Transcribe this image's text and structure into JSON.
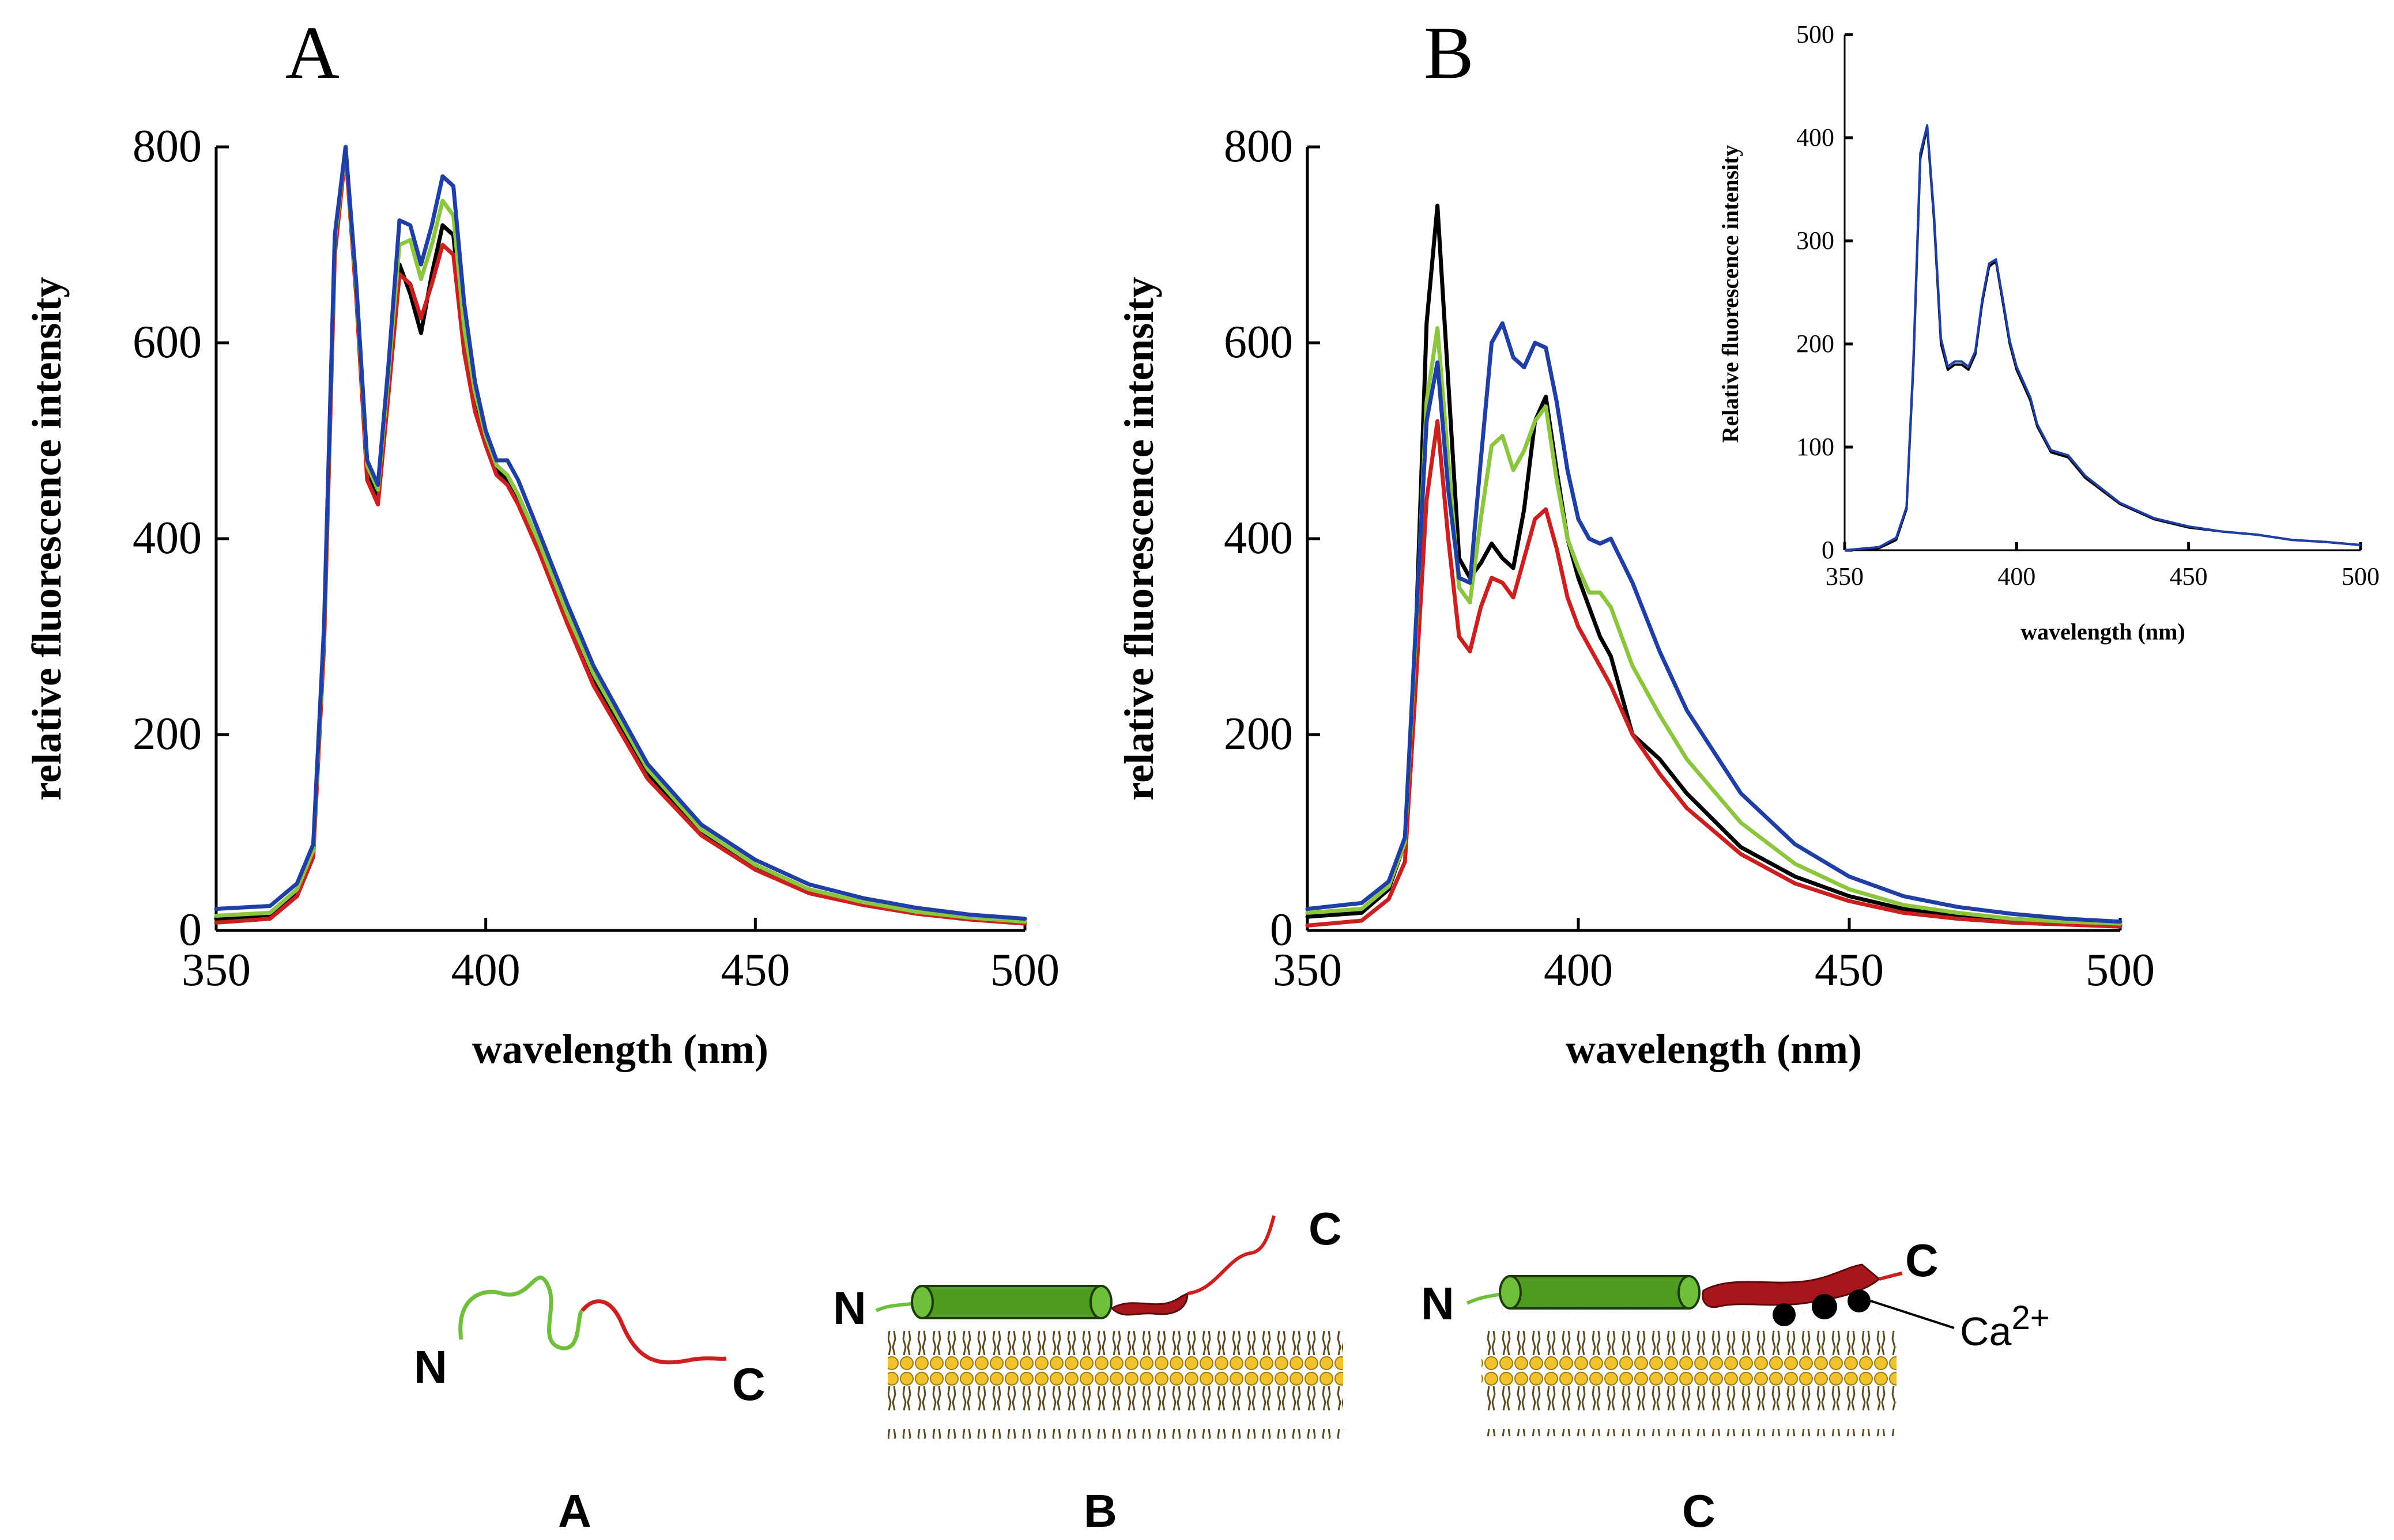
{
  "chart_data": [
    {
      "panel": "A",
      "type": "line",
      "title": "A",
      "xlabel": "wavelength (nm)",
      "ylabel": "relative fluorescence intensity",
      "xlim": [
        350,
        500
      ],
      "ylim": [
        0,
        800
      ],
      "xticks": [
        350,
        400,
        450,
        500
      ],
      "yticks": [
        0,
        200,
        400,
        600,
        800
      ],
      "series": [
        {
          "name": "black",
          "color": "#000000",
          "x": [
            350,
            360,
            365,
            368,
            370,
            372,
            374,
            376,
            378,
            380,
            382,
            384,
            386,
            388,
            390,
            392,
            394,
            396,
            398,
            400,
            402,
            404,
            406,
            410,
            415,
            420,
            430,
            440,
            450,
            460,
            470,
            480,
            490,
            500
          ],
          "y": [
            12,
            15,
            40,
            80,
            300,
            700,
            800,
            650,
            470,
            445,
            560,
            680,
            650,
            610,
            670,
            720,
            710,
            600,
            540,
            500,
            470,
            460,
            440,
            390,
            320,
            255,
            160,
            100,
            65,
            40,
            28,
            18,
            12,
            8
          ]
        },
        {
          "name": "red",
          "color": "#cc1f1f",
          "x": [
            350,
            360,
            365,
            368,
            370,
            372,
            374,
            376,
            378,
            380,
            382,
            384,
            386,
            388,
            390,
            392,
            394,
            396,
            398,
            400,
            402,
            404,
            406,
            410,
            415,
            420,
            430,
            440,
            450,
            460,
            470,
            480,
            490,
            500
          ],
          "y": [
            8,
            12,
            35,
            75,
            290,
            690,
            795,
            645,
            460,
            435,
            550,
            670,
            660,
            625,
            660,
            700,
            690,
            590,
            530,
            495,
            465,
            455,
            435,
            385,
            315,
            250,
            155,
            97,
            62,
            38,
            26,
            17,
            11,
            7
          ]
        },
        {
          "name": "green",
          "color": "#8cc63f",
          "x": [
            350,
            360,
            365,
            368,
            370,
            372,
            374,
            376,
            378,
            380,
            382,
            384,
            386,
            388,
            390,
            392,
            394,
            396,
            398,
            400,
            402,
            404,
            406,
            410,
            415,
            420,
            430,
            440,
            450,
            460,
            470,
            480,
            490,
            500
          ],
          "y": [
            15,
            18,
            42,
            82,
            305,
            705,
            798,
            655,
            475,
            450,
            570,
            700,
            705,
            665,
            700,
            745,
            730,
            615,
            550,
            505,
            475,
            465,
            445,
            395,
            325,
            262,
            165,
            103,
            67,
            42,
            29,
            19,
            13,
            9
          ]
        },
        {
          "name": "blue",
          "color": "#1f3fa6",
          "x": [
            350,
            360,
            365,
            368,
            370,
            372,
            374,
            376,
            378,
            380,
            382,
            384,
            386,
            388,
            390,
            392,
            394,
            396,
            398,
            400,
            402,
            404,
            406,
            410,
            415,
            420,
            430,
            440,
            450,
            460,
            470,
            480,
            490,
            500
          ],
          "y": [
            22,
            25,
            48,
            88,
            310,
            710,
            800,
            660,
            480,
            455,
            580,
            725,
            720,
            680,
            720,
            770,
            760,
            640,
            560,
            510,
            480,
            480,
            460,
            405,
            335,
            270,
            170,
            108,
            72,
            47,
            33,
            23,
            16,
            12
          ]
        }
      ]
    },
    {
      "panel": "B",
      "type": "line",
      "title": "B",
      "xlabel": "wavelength (nm)",
      "ylabel": "relative fluorescence intensity",
      "xlim": [
        350,
        500
      ],
      "ylim": [
        0,
        800
      ],
      "xticks": [
        350,
        400,
        450,
        500
      ],
      "yticks": [
        0,
        200,
        400,
        600,
        800
      ],
      "series": [
        {
          "name": "black",
          "color": "#000000",
          "x": [
            350,
            360,
            365,
            368,
            370,
            372,
            374,
            376,
            378,
            380,
            382,
            384,
            386,
            388,
            390,
            392,
            394,
            396,
            398,
            400,
            402,
            404,
            406,
            410,
            415,
            420,
            430,
            440,
            450,
            460,
            470,
            480,
            490,
            500
          ],
          "y": [
            14,
            18,
            42,
            90,
            300,
            620,
            740,
            560,
            380,
            360,
            375,
            395,
            380,
            370,
            430,
            520,
            545,
            470,
            400,
            360,
            330,
            300,
            280,
            200,
            175,
            140,
            85,
            55,
            35,
            22,
            15,
            10,
            8,
            6
          ]
        },
        {
          "name": "red",
          "color": "#cc1f1f",
          "x": [
            350,
            360,
            365,
            368,
            370,
            372,
            374,
            376,
            378,
            380,
            382,
            384,
            386,
            388,
            390,
            392,
            394,
            396,
            398,
            400,
            402,
            404,
            406,
            410,
            415,
            420,
            430,
            440,
            450,
            460,
            470,
            480,
            490,
            500
          ],
          "y": [
            5,
            10,
            32,
            70,
            250,
            440,
            520,
            400,
            300,
            285,
            330,
            360,
            355,
            340,
            380,
            420,
            430,
            390,
            340,
            310,
            290,
            270,
            250,
            200,
            160,
            125,
            78,
            48,
            30,
            18,
            12,
            8,
            6,
            4
          ]
        },
        {
          "name": "green",
          "color": "#8cc63f",
          "x": [
            350,
            360,
            365,
            368,
            370,
            372,
            374,
            376,
            378,
            380,
            382,
            384,
            386,
            388,
            390,
            392,
            394,
            396,
            398,
            400,
            402,
            404,
            406,
            410,
            415,
            420,
            430,
            440,
            450,
            460,
            470,
            480,
            490,
            500
          ],
          "y": [
            18,
            22,
            45,
            90,
            300,
            540,
            615,
            480,
            350,
            335,
            420,
            495,
            505,
            470,
            490,
            520,
            535,
            460,
            400,
            370,
            345,
            345,
            330,
            270,
            220,
            175,
            110,
            68,
            42,
            26,
            18,
            12,
            9,
            7
          ]
        },
        {
          "name": "blue",
          "color": "#1f3fa6",
          "x": [
            350,
            360,
            365,
            368,
            370,
            372,
            374,
            376,
            378,
            380,
            382,
            384,
            386,
            388,
            390,
            392,
            394,
            396,
            398,
            400,
            402,
            404,
            406,
            410,
            415,
            420,
            430,
            440,
            450,
            460,
            470,
            480,
            490,
            500
          ],
          "y": [
            22,
            28,
            50,
            95,
            310,
            520,
            580,
            450,
            360,
            355,
            480,
            600,
            620,
            585,
            575,
            600,
            595,
            540,
            470,
            420,
            400,
            395,
            400,
            355,
            285,
            225,
            140,
            88,
            55,
            35,
            24,
            17,
            12,
            9
          ]
        }
      ]
    },
    {
      "panel": "B-inset",
      "type": "line",
      "xlabel": "wavelength (nm)",
      "ylabel": "Relative fluorescence intensity",
      "xlim": [
        350,
        500
      ],
      "ylim": [
        0,
        500
      ],
      "xticks": [
        350,
        400,
        450,
        500
      ],
      "yticks": [
        0,
        100,
        200,
        300,
        400,
        500
      ],
      "series": [
        {
          "name": "black",
          "color": "#000000",
          "x": [
            350,
            360,
            365,
            368,
            370,
            372,
            374,
            376,
            378,
            380,
            382,
            384,
            386,
            388,
            390,
            392,
            394,
            396,
            398,
            400,
            402,
            404,
            406,
            410,
            415,
            420,
            430,
            440,
            450,
            460,
            470,
            480,
            490,
            500
          ],
          "y": [
            0,
            2,
            10,
            40,
            180,
            380,
            410,
            320,
            200,
            175,
            180,
            180,
            175,
            190,
            240,
            275,
            280,
            240,
            200,
            175,
            160,
            145,
            120,
            95,
            90,
            70,
            45,
            30,
            22,
            18,
            15,
            10,
            8,
            5
          ]
        },
        {
          "name": "blue",
          "color": "#1f3fa6",
          "x": [
            350,
            360,
            365,
            368,
            370,
            372,
            374,
            376,
            378,
            380,
            382,
            384,
            386,
            388,
            390,
            392,
            394,
            396,
            398,
            400,
            402,
            404,
            406,
            410,
            415,
            420,
            430,
            440,
            450,
            460,
            470,
            480,
            490,
            500
          ],
          "y": [
            0,
            3,
            12,
            42,
            185,
            385,
            412,
            325,
            205,
            178,
            183,
            183,
            178,
            193,
            243,
            278,
            282,
            243,
            203,
            178,
            163,
            148,
            122,
            97,
            92,
            72,
            46,
            31,
            23,
            18,
            15,
            10,
            8,
            5
          ]
        }
      ]
    }
  ],
  "diagrams": {
    "a": {
      "n": "N",
      "c": "C",
      "caption": "A"
    },
    "b": {
      "n": "N",
      "c": "C",
      "caption": "B"
    },
    "c": {
      "n": "N",
      "c": "C",
      "caption": "C",
      "ion": "Ca",
      "ion_charge": "2+"
    }
  }
}
